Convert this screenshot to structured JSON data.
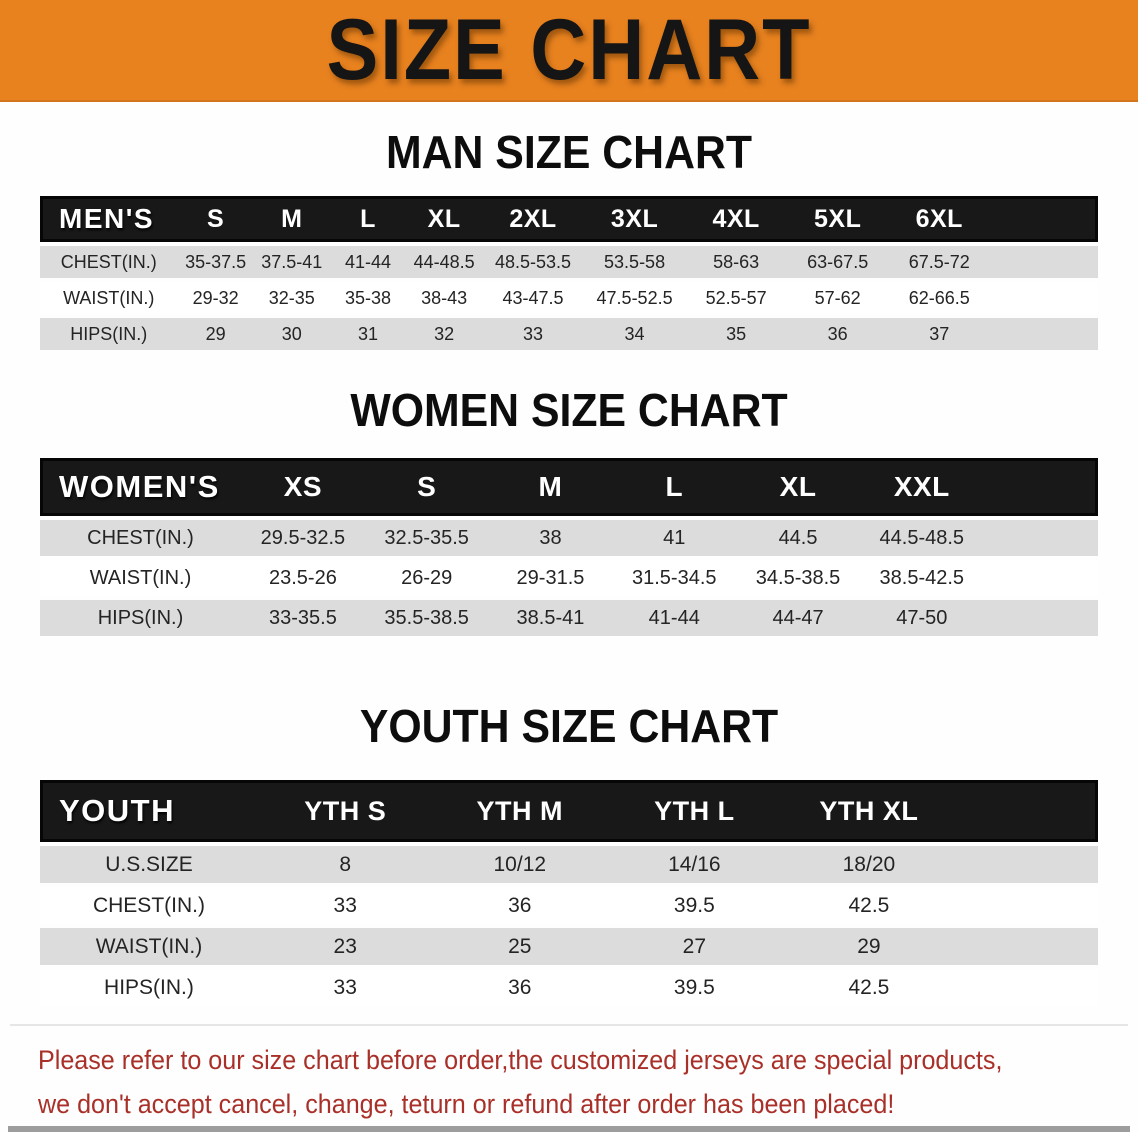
{
  "banner": {
    "title": "SIZE CHART",
    "background_color": "#e8821f",
    "text_color": "#151515"
  },
  "sections": [
    {
      "id": "men",
      "title": "MAN SIZE CHART",
      "table": {
        "corner_label": "MEN'S",
        "size_headers": [
          "S",
          "M",
          "L",
          "XL",
          "2XL",
          "3XL",
          "4XL",
          "5XL",
          "6XL"
        ],
        "rows": [
          {
            "label": "CHEST(IN.)",
            "values": [
              "35-37.5",
              "37.5-41",
              "41-44",
              "44-48.5",
              "48.5-53.5",
              "53.5-58",
              "58-63",
              "63-67.5",
              "67.5-72"
            ]
          },
          {
            "label": "WAIST(IN.)",
            "values": [
              "29-32",
              "32-35",
              "35-38",
              "38-43",
              "43-47.5",
              "47.5-52.5",
              "52.5-57",
              "57-62",
              "62-66.5"
            ]
          },
          {
            "label": "HIPS(IN.)",
            "values": [
              "29",
              "30",
              "31",
              "32",
              "33",
              "34",
              "35",
              "36",
              "37"
            ]
          }
        ]
      }
    },
    {
      "id": "women",
      "title": "WOMEN SIZE CHART",
      "table": {
        "corner_label": "WOMEN'S",
        "size_headers": [
          "XS",
          "S",
          "M",
          "L",
          "XL",
          "XXL"
        ],
        "rows": [
          {
            "label": "CHEST(IN.)",
            "values": [
              "29.5-32.5",
              "32.5-35.5",
              "38",
              "41",
              "44.5",
              "44.5-48.5"
            ]
          },
          {
            "label": "WAIST(IN.)",
            "values": [
              "23.5-26",
              "26-29",
              "29-31.5",
              "31.5-34.5",
              "34.5-38.5",
              "38.5-42.5"
            ]
          },
          {
            "label": "HIPS(IN.)",
            "values": [
              "33-35.5",
              "35.5-38.5",
              "38.5-41",
              "41-44",
              "44-47",
              "47-50"
            ]
          }
        ]
      }
    },
    {
      "id": "youth",
      "title": "YOUTH SIZE CHART",
      "table": {
        "corner_label": "YOUTH",
        "size_headers": [
          "YTH S",
          "YTH M",
          "YTH L",
          "YTH XL"
        ],
        "rows": [
          {
            "label": "U.S.SIZE",
            "values": [
              "8",
              "10/12",
              "14/16",
              "18/20"
            ]
          },
          {
            "label": "CHEST(IN.)",
            "values": [
              "33",
              "36",
              "39.5",
              "42.5"
            ]
          },
          {
            "label": "WAIST(IN.)",
            "values": [
              "23",
              "25",
              "27",
              "29"
            ]
          },
          {
            "label": "HIPS(IN.)",
            "values": [
              "33",
              "36",
              "39.5",
              "42.5"
            ]
          }
        ]
      }
    }
  ],
  "disclaimer": {
    "lines": [
      "Please refer to our size chart before order,the customized jerseys are special products,",
      "we don't accept cancel, change, teturn or refund after order has been placed!"
    ],
    "text_color": "#a93029"
  },
  "colors": {
    "banner_orange": "#e8821f",
    "table_header_black": "#181818",
    "row_stripe_gray": "#dcdcdc",
    "disclaimer_red": "#a93029"
  }
}
